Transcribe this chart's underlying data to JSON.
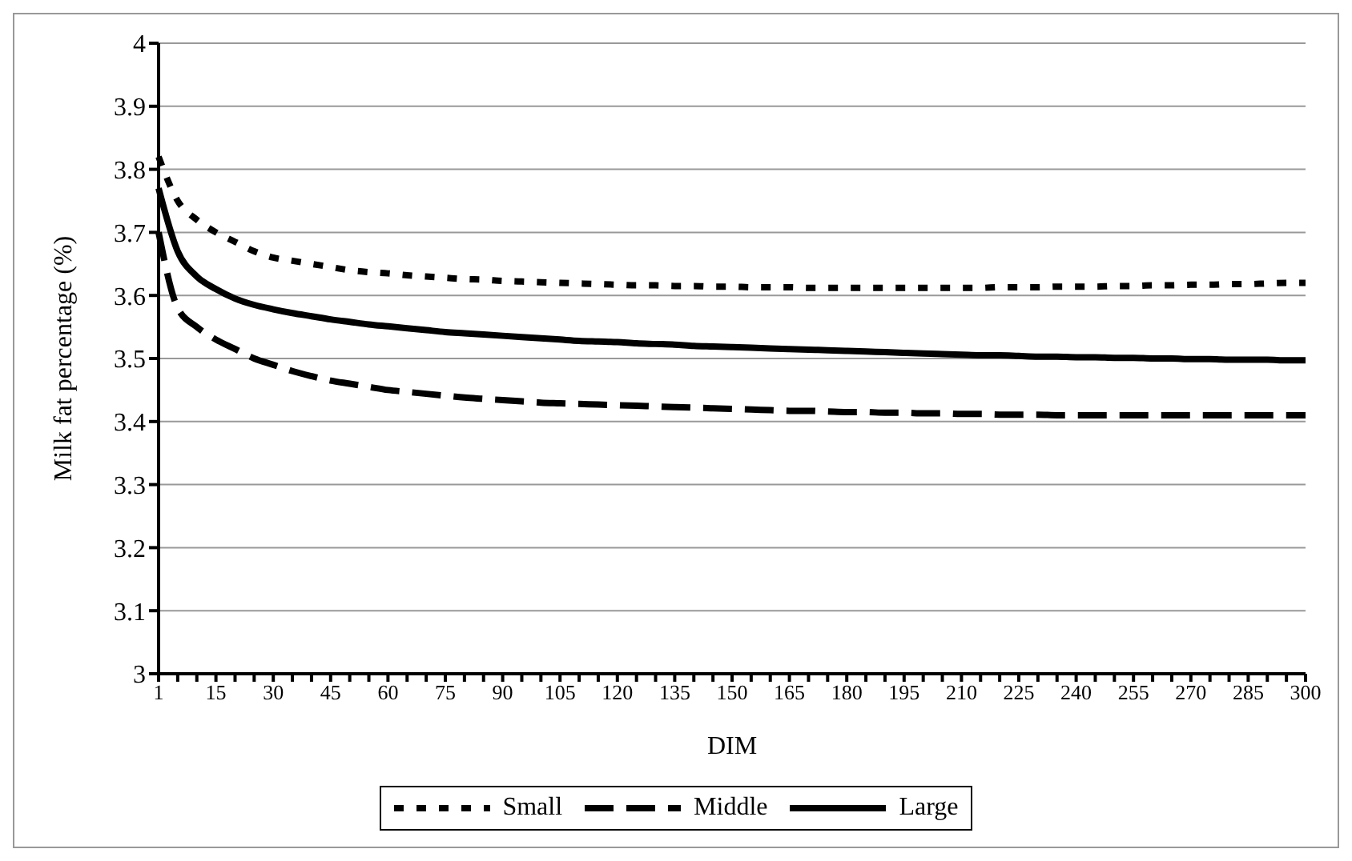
{
  "chart_data": {
    "type": "line",
    "xlabel": "DIM",
    "ylabel": "Milk fat percentage (%)",
    "categories": [
      "1",
      null,
      null,
      "15",
      null,
      null,
      "30",
      null,
      null,
      "45",
      null,
      null,
      "60",
      null,
      null,
      "75",
      null,
      null,
      "90",
      null,
      null,
      "105",
      null,
      null,
      "120",
      null,
      null,
      "135",
      null,
      null,
      "150",
      null,
      null,
      "165",
      null,
      null,
      "180",
      null,
      null,
      "195",
      null,
      null,
      "210",
      null,
      null,
      "225",
      null,
      null,
      "240",
      null,
      null,
      "255",
      null,
      null,
      "270",
      null,
      null,
      "285",
      null,
      null,
      "300"
    ],
    "series": [
      {
        "name": "Small",
        "color": "#000000",
        "line_style": "dotted",
        "values": [
          3.82,
          3.75,
          3.72,
          3.7,
          3.685,
          3.67,
          3.66,
          3.655,
          3.65,
          3.645,
          3.64,
          3.637,
          3.635,
          3.632,
          3.63,
          3.628,
          3.626,
          3.625,
          3.623,
          3.622,
          3.621,
          3.62,
          3.619,
          3.618,
          3.617,
          3.616,
          3.616,
          3.615,
          3.615,
          3.614,
          3.614,
          3.613,
          3.613,
          3.613,
          3.612,
          3.612,
          3.612,
          3.612,
          3.612,
          3.612,
          3.612,
          3.612,
          3.612,
          3.612,
          3.613,
          3.613,
          3.613,
          3.614,
          3.614,
          3.614,
          3.615,
          3.615,
          3.616,
          3.616,
          3.617,
          3.617,
          3.618,
          3.618,
          3.619,
          3.62,
          3.62
        ]
      },
      {
        "name": "Middle",
        "color": "#000000",
        "line_style": "dashed",
        "values": [
          3.7,
          3.58,
          3.55,
          3.53,
          3.515,
          3.5,
          3.49,
          3.48,
          3.472,
          3.465,
          3.46,
          3.455,
          3.45,
          3.447,
          3.444,
          3.441,
          3.438,
          3.436,
          3.434,
          3.432,
          3.43,
          3.429,
          3.428,
          3.427,
          3.426,
          3.425,
          3.424,
          3.423,
          3.422,
          3.421,
          3.42,
          3.419,
          3.418,
          3.417,
          3.417,
          3.416,
          3.415,
          3.415,
          3.414,
          3.414,
          3.413,
          3.413,
          3.412,
          3.412,
          3.411,
          3.411,
          3.411,
          3.41,
          3.41,
          3.41,
          3.41,
          3.41,
          3.41,
          3.41,
          3.41,
          3.41,
          3.41,
          3.41,
          3.41,
          3.41,
          3.41
        ]
      },
      {
        "name": "Large",
        "color": "#000000",
        "line_style": "solid",
        "values": [
          3.77,
          3.67,
          3.63,
          3.61,
          3.595,
          3.585,
          3.578,
          3.572,
          3.567,
          3.562,
          3.558,
          3.554,
          3.551,
          3.548,
          3.545,
          3.542,
          3.54,
          3.538,
          3.536,
          3.534,
          3.532,
          3.53,
          3.528,
          3.527,
          3.526,
          3.524,
          3.523,
          3.522,
          3.52,
          3.519,
          3.518,
          3.517,
          3.516,
          3.515,
          3.514,
          3.513,
          3.512,
          3.511,
          3.51,
          3.509,
          3.508,
          3.507,
          3.506,
          3.505,
          3.505,
          3.504,
          3.503,
          3.503,
          3.502,
          3.502,
          3.501,
          3.501,
          3.5,
          3.5,
          3.499,
          3.499,
          3.498,
          3.498,
          3.498,
          3.497,
          3.497
        ]
      }
    ],
    "ylim": [
      3,
      4
    ],
    "yticks": [
      3,
      3.1,
      3.2,
      3.3,
      3.4,
      3.5,
      3.6,
      3.7,
      3.8,
      3.9,
      4
    ],
    "grid": "y",
    "legend": "bottom",
    "marker": "none"
  }
}
